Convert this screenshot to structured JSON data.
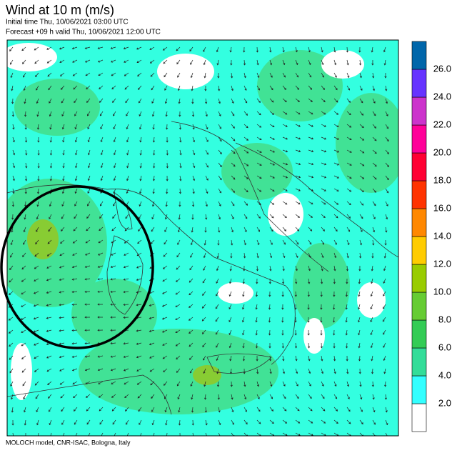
{
  "header": {
    "title": "Wind at 10 m (m/s)",
    "initial_time": "Initial time  Thu, 10/06/2021 03:00 UTC",
    "forecast": "Forecast +09 h valid  Thu, 10/06/2021 12:00 UTC"
  },
  "colorbar": {
    "colors": [
      "#ffffff",
      "#33ffff",
      "#33dd99",
      "#33cc55",
      "#66cc33",
      "#99cc00",
      "#ffcc00",
      "#ff8800",
      "#ff3300",
      "#ff0033",
      "#ff0099",
      "#cc33cc",
      "#6633ff",
      "#0066aa"
    ],
    "labels": [
      "2.0",
      "4.0",
      "6.0",
      "8.0",
      "10.0",
      "12.0",
      "14.0",
      "16.0",
      "18.0",
      "20.0",
      "22.0",
      "24.0",
      "26.0"
    ]
  },
  "footer": "MOLOCH model, CNR-ISAC, Bologna, Italy"
}
